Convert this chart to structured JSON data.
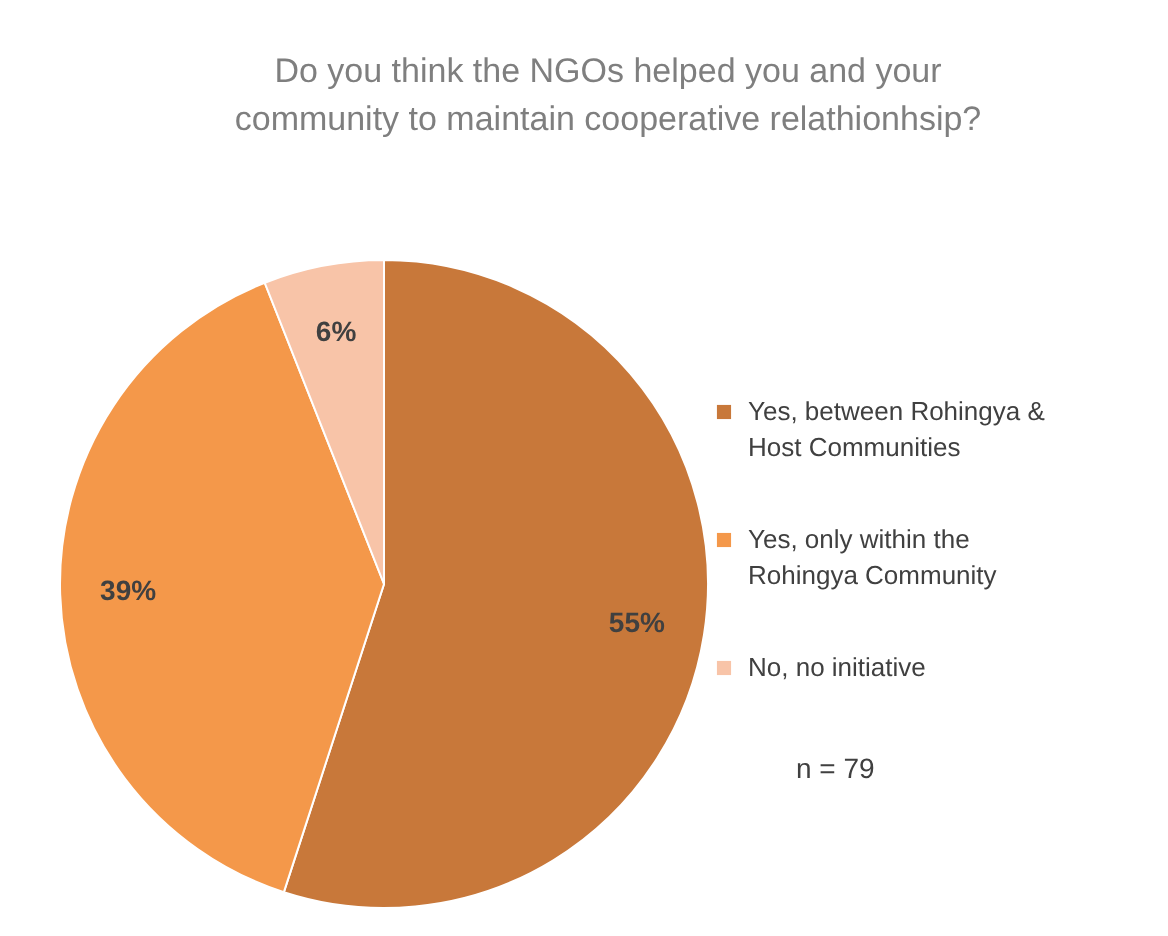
{
  "chart_data": {
    "type": "pie",
    "title": "Do you think the NGOs helped you and your community to maintain cooperative relathionhsip?",
    "categories": [
      "Yes, between Rohingya & Host Communities",
      "Yes, only within the Rohingya Community",
      "No, no initiative"
    ],
    "values": [
      55,
      39,
      6
    ],
    "value_labels": [
      "55%",
      "39%",
      "6%"
    ],
    "colors": [
      "#c8783a",
      "#f4984a",
      "#f8c4a8"
    ],
    "legend": "right",
    "annotations": [
      "n = 79"
    ]
  }
}
